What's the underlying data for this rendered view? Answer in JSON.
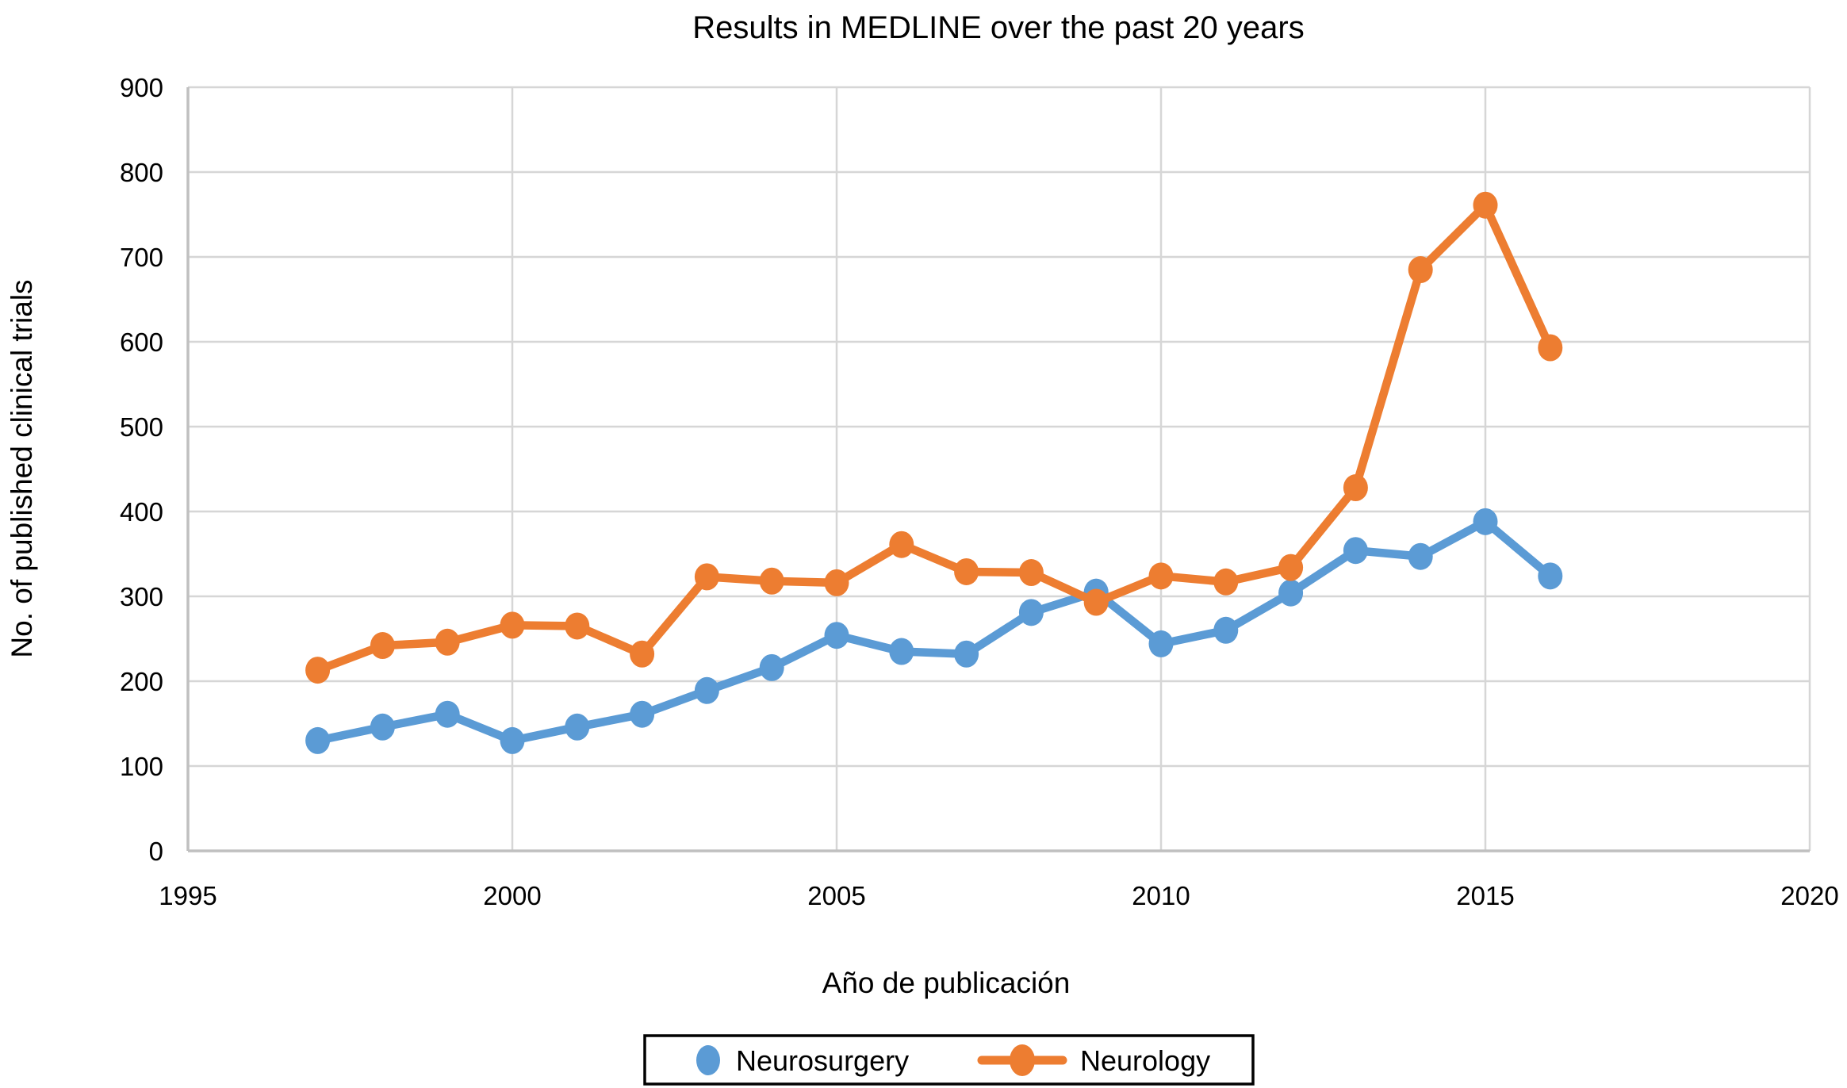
{
  "chart_data": {
    "type": "line",
    "title": "Results in MEDLINE over the past 20 years",
    "xlabel": "Año de publicación",
    "ylabel": "No. of published clinical trials",
    "xlim": [
      1995,
      2020
    ],
    "ylim": [
      0,
      900
    ],
    "x_ticks": [
      1995,
      2000,
      2005,
      2010,
      2015,
      2020
    ],
    "y_ticks": [
      0,
      100,
      200,
      300,
      400,
      500,
      600,
      700,
      800,
      900
    ],
    "grid": true,
    "legend_position": "bottom",
    "x": [
      1997,
      1998,
      1999,
      2000,
      2001,
      2002,
      2003,
      2004,
      2005,
      2006,
      2007,
      2008,
      2009,
      2010,
      2011,
      2012,
      2013,
      2014,
      2015,
      2016
    ],
    "series": [
      {
        "name": "Neurosurgery",
        "color": "#5B9BD5",
        "legend_key": "marker",
        "values": [
          130,
          146,
          161,
          130,
          146,
          161,
          189,
          216,
          254,
          235,
          232,
          281,
          305,
          244,
          260,
          304,
          354,
          347,
          388,
          324
        ]
      },
      {
        "name": "Neurology",
        "color": "#ED7D31",
        "legend_key": "line-marker",
        "values": [
          213,
          242,
          246,
          266,
          265,
          232,
          323,
          318,
          316,
          361,
          329,
          328,
          293,
          324,
          317,
          334,
          428,
          685,
          761,
          593
        ]
      }
    ],
    "colors": {
      "gridline": "#D6D6D6",
      "axis": "#C0C0C0",
      "text": "#000000",
      "background": "#FFFFFF",
      "legend_border": "#000000"
    }
  }
}
